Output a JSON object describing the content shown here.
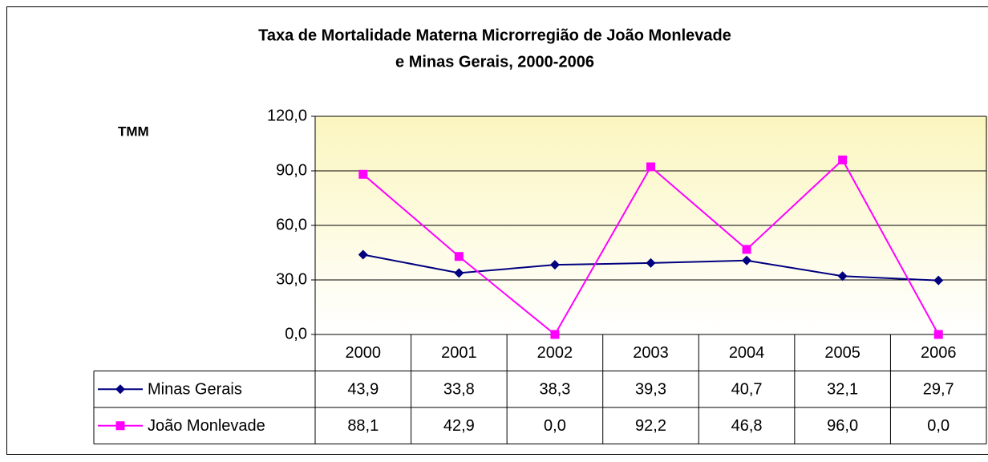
{
  "chart_data": {
    "type": "line",
    "title": [
      "Taxa de Mortalidade Materna  Microrregião de  João Monlevade",
      "e  Minas Gerais, 2000-2006"
    ],
    "y_label": "TMM",
    "categories": [
      "2000",
      "2001",
      "2002",
      "2003",
      "2004",
      "2005",
      "2006"
    ],
    "series": [
      {
        "name": "Minas Gerais",
        "color": "#000080",
        "marker": "diamond",
        "values": [
          43.9,
          33.8,
          38.3,
          39.3,
          40.7,
          32.1,
          29.7
        ],
        "value_labels": [
          "43,9",
          "33,8",
          "38,3",
          "39,3",
          "40,7",
          "32,1",
          "29,7"
        ]
      },
      {
        "name": "João Monlevade",
        "color": "#ff00ff",
        "marker": "square",
        "values": [
          88.1,
          42.9,
          0.0,
          92.2,
          46.8,
          96.0,
          0.0
        ],
        "value_labels": [
          "88,1",
          "42,9",
          "0,0",
          "92,2",
          "46,8",
          "96,0",
          "0,0"
        ]
      }
    ],
    "ylim": [
      0,
      120
    ],
    "yticks": [
      {
        "value": 0,
        "label": "0,0"
      },
      {
        "value": 30,
        "label": "30,0"
      },
      {
        "value": 60,
        "label": "60,0"
      },
      {
        "value": 90,
        "label": "90,0"
      },
      {
        "value": 120,
        "label": "120,0"
      }
    ],
    "grid": true
  }
}
